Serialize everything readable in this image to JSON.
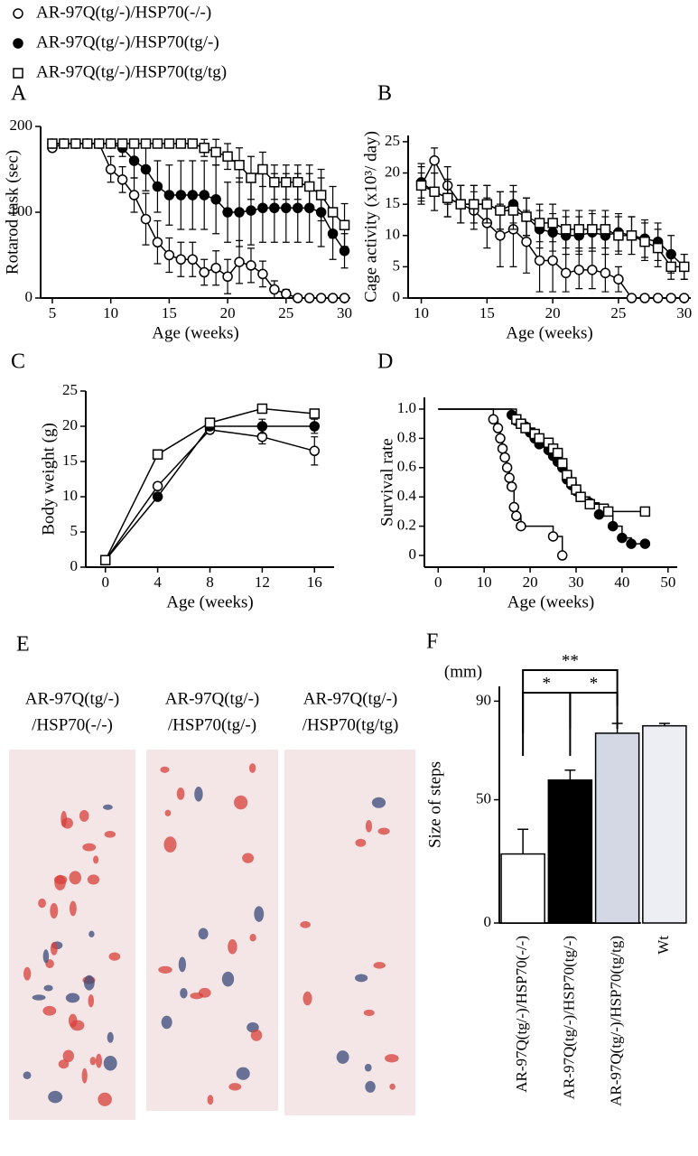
{
  "chart_data": [
    {
      "type": "line",
      "panel": "A",
      "x_label": "Age (weeks)",
      "y_label": "Rotarod task (sec)",
      "x": [
        5,
        6,
        7,
        8,
        9,
        10,
        11,
        12,
        13,
        14,
        15,
        16,
        17,
        18,
        19,
        20,
        21,
        22,
        23,
        24,
        25,
        26,
        27,
        28,
        29,
        30
      ],
      "xlim": [
        4,
        30.5
      ],
      "xticks": [
        5,
        10,
        15,
        20,
        25,
        30
      ],
      "ylim": [
        0,
        200
      ],
      "yticks": [
        0,
        100,
        200
      ],
      "series": [
        {
          "name": "AR-97Q(tg/-)/HSP70(-/-)",
          "marker": "circle-open",
          "values": [
            175,
            180,
            180,
            180,
            180,
            150,
            138,
            120,
            92,
            65,
            50,
            45,
            45,
            30,
            35,
            25,
            42,
            38,
            28,
            10,
            5,
            0,
            0,
            0,
            0,
            0
          ],
          "errors": [
            0,
            0,
            0,
            0,
            0,
            15,
            15,
            20,
            30,
            25,
            20,
            20,
            20,
            15,
            20,
            20,
            25,
            20,
            15,
            10,
            5,
            0,
            0,
            0,
            0,
            0
          ]
        },
        {
          "name": "AR-97Q(tg/-)/HSP70(tg/-)",
          "marker": "circle-filled",
          "values": [
            180,
            180,
            180,
            180,
            180,
            180,
            175,
            160,
            150,
            130,
            120,
            120,
            120,
            120,
            115,
            100,
            100,
            102,
            105,
            105,
            105,
            105,
            105,
            100,
            75,
            55
          ],
          "errors": [
            0,
            0,
            0,
            0,
            0,
            0,
            10,
            20,
            25,
            30,
            35,
            40,
            40,
            40,
            40,
            35,
            40,
            40,
            40,
            40,
            40,
            40,
            40,
            40,
            30,
            20
          ]
        },
        {
          "name": "AR-97Q(tg/-)/HSP70(tg/tg)",
          "marker": "square-open",
          "values": [
            180,
            180,
            180,
            180,
            180,
            180,
            180,
            180,
            180,
            180,
            180,
            180,
            180,
            175,
            170,
            165,
            155,
            140,
            150,
            135,
            135,
            135,
            130,
            120,
            100,
            85
          ],
          "errors": [
            0,
            0,
            0,
            0,
            0,
            0,
            0,
            0,
            0,
            0,
            0,
            0,
            0,
            10,
            15,
            15,
            20,
            25,
            20,
            20,
            20,
            20,
            25,
            30,
            30,
            25
          ]
        }
      ]
    },
    {
      "type": "line",
      "panel": "B",
      "x_label": "Age (weeks)",
      "y_label": "Cage activity (x10³/ day)",
      "x": [
        10,
        11,
        12,
        13,
        14,
        15,
        16,
        17,
        18,
        19,
        20,
        21,
        22,
        23,
        24,
        25,
        26,
        27,
        28,
        29,
        30
      ],
      "xlim": [
        9,
        30.5
      ],
      "xticks": [
        10,
        15,
        20,
        25,
        30
      ],
      "ylim": [
        0,
        26
      ],
      "yticks": [
        0,
        5,
        10,
        15,
        20,
        25
      ],
      "series": [
        {
          "marker": "circle-open",
          "values": [
            18,
            22,
            18,
            15,
            14,
            12,
            10,
            11,
            9,
            6,
            6,
            4,
            4.5,
            4.5,
            4,
            3,
            0,
            0,
            0,
            0,
            0
          ],
          "errors": [
            2,
            2,
            3,
            3,
            3,
            4,
            5,
            6,
            5,
            5,
            5,
            3,
            3,
            3,
            3,
            2,
            0,
            0,
            0,
            0,
            0
          ]
        },
        {
          "marker": "circle-filled",
          "values": [
            18.5,
            17,
            16,
            15,
            15,
            15,
            14,
            15,
            13,
            11,
            10.5,
            10,
            10,
            10.5,
            10,
            10.5,
            10,
            9.5,
            9,
            7,
            5
          ],
          "errors": [
            3,
            3,
            3,
            3,
            3,
            3,
            3,
            3,
            3,
            3,
            3,
            3,
            3,
            3,
            3,
            3,
            3,
            3,
            3,
            3,
            2
          ]
        },
        {
          "marker": "square-open",
          "values": [
            18,
            17,
            16,
            15,
            15,
            15,
            14,
            14,
            13,
            12,
            12,
            11,
            11,
            11,
            11,
            10,
            10,
            9,
            8,
            5,
            5
          ],
          "errors": [
            3,
            3,
            3,
            3,
            3,
            3,
            3,
            3,
            3,
            3,
            3,
            3,
            3,
            3,
            3,
            3,
            3,
            3,
            3,
            2,
            2
          ]
        }
      ]
    },
    {
      "type": "line",
      "panel": "C",
      "x_label": "Age (weeks)",
      "y_label": "Body weight (g)",
      "x": [
        0,
        4,
        8,
        12,
        16
      ],
      "xlim": [
        -1.5,
        17.5
      ],
      "xticks": [
        0,
        4,
        8,
        12,
        16
      ],
      "ylim": [
        0,
        25
      ],
      "yticks": [
        0,
        5,
        10,
        15,
        20,
        25
      ],
      "series": [
        {
          "marker": "circle-open",
          "values": [
            1,
            11.5,
            19.5,
            18.5,
            16.5
          ],
          "errors": [
            0,
            0.5,
            0.5,
            1,
            2
          ]
        },
        {
          "marker": "circle-filled",
          "values": [
            1,
            10,
            20,
            20,
            20
          ],
          "errors": [
            0,
            0.5,
            0.5,
            1,
            1
          ]
        },
        {
          "marker": "square-open",
          "values": [
            1,
            16,
            20.5,
            22.5,
            21.8
          ],
          "errors": [
            0,
            0.5,
            0.5,
            0.5,
            0.5
          ]
        }
      ]
    },
    {
      "type": "step",
      "panel": "D",
      "x_label": "Age (weeks)",
      "y_label": "Survival rate",
      "xlim": [
        -3,
        52
      ],
      "xticks": [
        0,
        10,
        20,
        30,
        40,
        50
      ],
      "ylim": [
        -0.08,
        1.08
      ],
      "yticks": [
        0,
        0.2,
        0.4,
        0.6,
        0.8,
        {
          "value": 1,
          "label": "1.0"
        }
      ],
      "series": [
        {
          "marker": "circle-open",
          "x": [
            0,
            12,
            13,
            13.5,
            14,
            14.5,
            15,
            15.5,
            16,
            16.5,
            17,
            18,
            25,
            27
          ],
          "values": [
            1,
            0.93,
            0.87,
            0.8,
            0.73,
            0.67,
            0.6,
            0.53,
            0.47,
            0.33,
            0.27,
            0.2,
            0.13,
            0
          ]
        },
        {
          "marker": "circle-filled",
          "x": [
            0,
            16,
            17,
            19,
            20,
            21,
            22,
            24,
            25,
            26,
            27,
            28,
            29,
            30,
            31,
            33,
            35,
            38,
            40,
            42,
            45
          ],
          "values": [
            1,
            0.96,
            0.92,
            0.88,
            0.84,
            0.8,
            0.76,
            0.72,
            0.68,
            0.64,
            0.6,
            0.52,
            0.48,
            0.44,
            0.4,
            0.36,
            0.28,
            0.2,
            0.12,
            0.08,
            0.08
          ]
        },
        {
          "marker": "square-open",
          "x": [
            0,
            17,
            18,
            19,
            21,
            22,
            24,
            25,
            26,
            27,
            28,
            29,
            30,
            31,
            33,
            37,
            45
          ],
          "values": [
            1,
            0.93,
            0.9,
            0.87,
            0.83,
            0.8,
            0.77,
            0.73,
            0.7,
            0.63,
            0.55,
            0.5,
            0.45,
            0.4,
            0.35,
            0.3,
            0.3
          ]
        }
      ]
    },
    {
      "type": "bar",
      "panel": "F",
      "y_label": "Size of steps",
      "unit": "(mm)",
      "categories": [
        "AR-97Q(tg/-)/HSP70(-/-)",
        "AR-97Q(tg/-)/HSP70(tg/-)",
        "AR-97Q(tg/-)/HSP70(tg/tg)",
        "Wt"
      ],
      "values": [
        28,
        58,
        77,
        80
      ],
      "errors": [
        10,
        4,
        4,
        1
      ],
      "colors": [
        "#ffffff",
        "#000000",
        "#d3d8e4",
        "#eceef3"
      ],
      "ylim": [
        0,
        96
      ],
      "yticks": [
        0,
        50,
        90
      ],
      "significance": [
        {
          "label": "**",
          "pair": [
            0,
            2
          ]
        },
        {
          "label": "*",
          "pair": [
            0,
            1
          ]
        },
        {
          "label": "*",
          "pair": [
            1,
            2
          ]
        }
      ]
    }
  ],
  "panel_e": {
    "panel": "E",
    "captions": [
      [
        "AR-97Q(tg/-)",
        "/HSP70(-/-)"
      ],
      [
        "AR-97Q(tg/-)",
        "/HSP70(tg/-)"
      ],
      [
        "AR-97Q(tg/-)",
        "/HSP70(tg/tg)"
      ]
    ]
  }
}
